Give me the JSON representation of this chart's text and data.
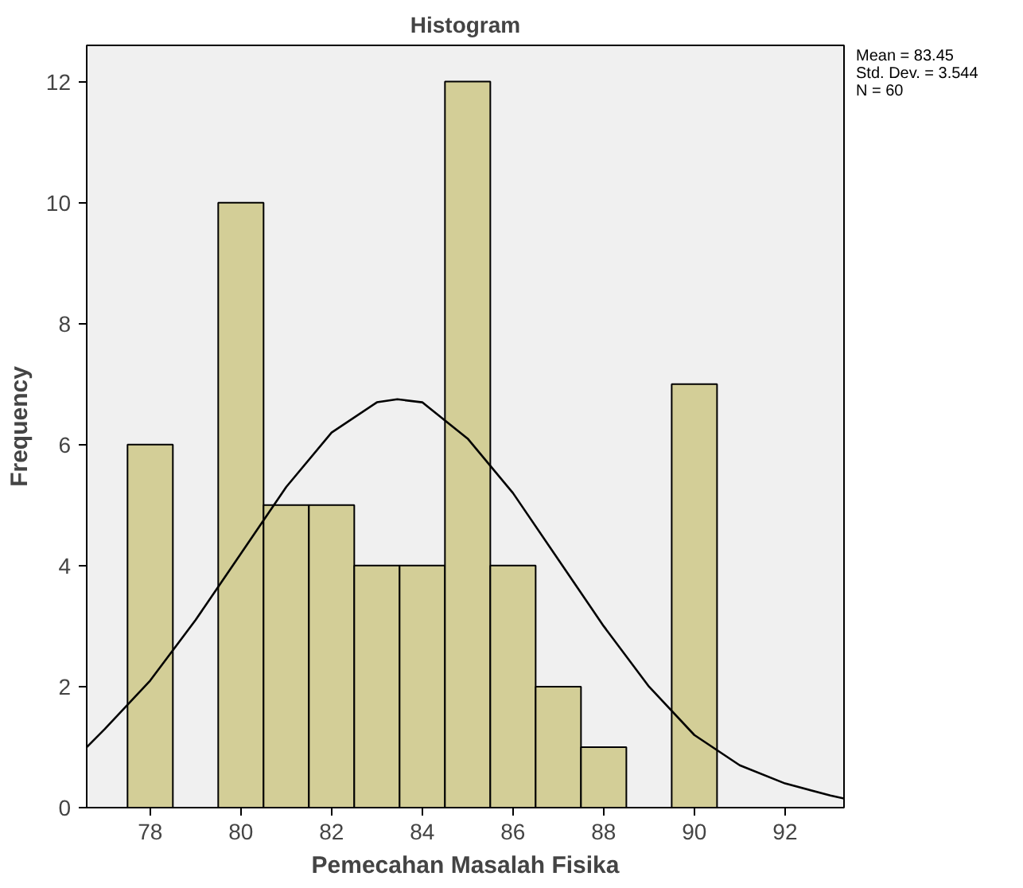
{
  "chart_data": {
    "type": "histogram",
    "title": "Histogram",
    "xlabel": "Pemecahan Masalah Fisika",
    "ylabel": "Frequency",
    "bins": [
      77.5,
      78.5,
      79.5,
      80.5,
      81.5,
      82.5,
      83.5,
      84.5,
      85.5,
      86.5,
      87.5,
      88.5,
      89.5,
      90.5
    ],
    "values": [
      6,
      0,
      10,
      5,
      5,
      4,
      4,
      12,
      4,
      2,
      1,
      0,
      7
    ],
    "color": "#d3ce97",
    "series": [
      {
        "type": "line",
        "color": "#000000",
        "x": [
          76.6,
          77,
          78,
          79,
          80,
          81,
          82,
          83,
          83.45,
          84,
          85,
          86,
          87,
          88,
          89,
          90,
          91,
          92,
          93,
          93.3
        ],
        "values": [
          1.0,
          1.3,
          2.1,
          3.1,
          4.2,
          5.3,
          6.2,
          6.7,
          6.75,
          6.7,
          6.1,
          5.2,
          4.1,
          3.0,
          2.0,
          1.2,
          0.7,
          0.4,
          0.2,
          0.15
        ]
      }
    ],
    "xlim": [
      76.6,
      93.3
    ],
    "ylim": [
      0,
      12.6
    ],
    "xticks": [
      78,
      80,
      82,
      84,
      86,
      88,
      90,
      92
    ],
    "yticks": [
      0,
      2,
      4,
      6,
      8,
      10,
      12
    ],
    "grid": false,
    "annotations": [
      "Mean = 83.45",
      "Std. Dev. = 3.544",
      "N = 60"
    ]
  }
}
